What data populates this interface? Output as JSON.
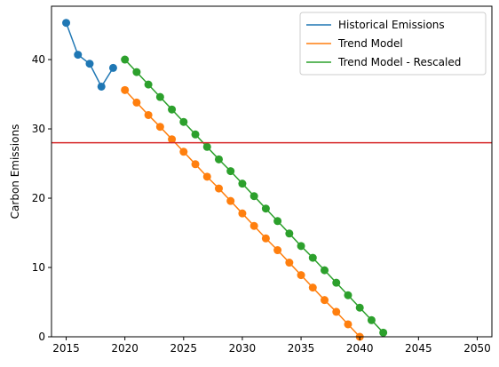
{
  "chart_data": {
    "type": "line",
    "title": "",
    "xlabel": "",
    "ylabel": "Carbon Emissions",
    "xlim": [
      2013.75,
      2051.25
    ],
    "ylim": [
      0,
      47.7
    ],
    "x_ticks": [
      2015,
      2020,
      2025,
      2030,
      2035,
      2040,
      2045,
      2050
    ],
    "y_ticks": [
      0,
      10,
      20,
      30,
      40
    ],
    "grid": false,
    "legend_position": "top-right",
    "reference_line": {
      "orientation": "horizontal",
      "y": 28,
      "color": "#d62728"
    },
    "series": [
      {
        "name": "Historical Emissions",
        "color": "#1f77b4",
        "x": [
          2015,
          2016,
          2017,
          2018,
          2019
        ],
        "y": [
          45.3,
          40.7,
          39.4,
          36.1,
          38.8
        ]
      },
      {
        "name": "Trend Model",
        "color": "#ff7f0e",
        "x": [
          2020,
          2021,
          2022,
          2023,
          2024,
          2025,
          2026,
          2027,
          2028,
          2029,
          2030,
          2031,
          2032,
          2033,
          2034,
          2035,
          2036,
          2037,
          2038,
          2039,
          2040
        ],
        "y": [
          35.6,
          33.8,
          32.0,
          30.3,
          28.5,
          26.7,
          24.9,
          23.1,
          21.4,
          19.6,
          17.8,
          16.0,
          14.2,
          12.5,
          10.7,
          8.9,
          7.1,
          5.3,
          3.6,
          1.8,
          0.0
        ]
      },
      {
        "name": "Trend Model - Rescaled",
        "color": "#2ca02c",
        "x": [
          2020,
          2021,
          2022,
          2023,
          2024,
          2025,
          2026,
          2027,
          2028,
          2029,
          2030,
          2031,
          2032,
          2033,
          2034,
          2035,
          2036,
          2037,
          2038,
          2039,
          2040,
          2041,
          2042
        ],
        "y": [
          40.0,
          38.2,
          36.4,
          34.6,
          32.8,
          31.0,
          29.2,
          27.4,
          25.6,
          23.9,
          22.1,
          20.3,
          18.5,
          16.7,
          14.9,
          13.1,
          11.4,
          9.6,
          7.8,
          6.0,
          4.2,
          2.4,
          0.6
        ]
      }
    ]
  }
}
